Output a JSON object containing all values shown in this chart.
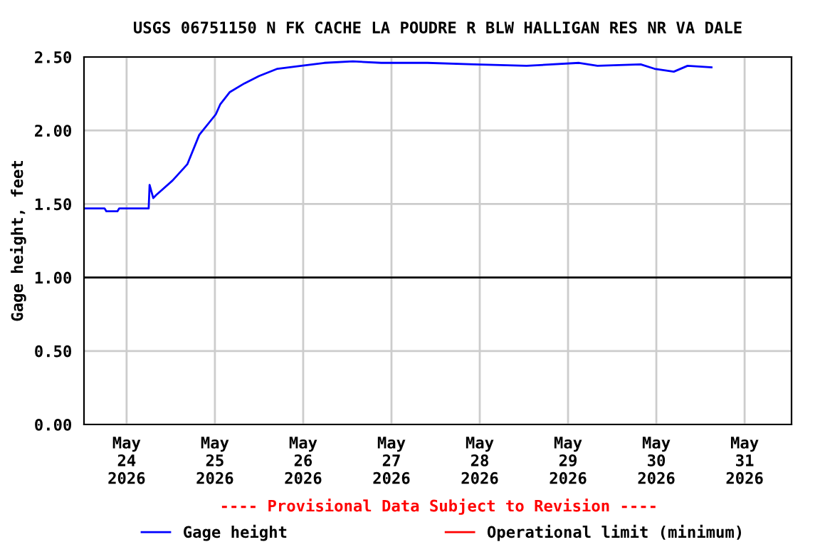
{
  "chart_data": {
    "type": "line",
    "title": "USGS 06751150 N FK CACHE LA POUDRE R BLW HALLIGAN RES NR VA DALE",
    "ylabel": "Gage height, feet",
    "annotations": [
      "---- Provisional Data Subject to Revision ----"
    ],
    "series": [
      {
        "name": "Gage height",
        "color": "#0000ff",
        "x": [
          "2026-05-23T12:45",
          "2026-05-23T18:00",
          "2026-05-23T18:30",
          "2026-05-23T21:30",
          "2026-05-23T22:00",
          "2026-05-24T06:00",
          "2026-05-24T06:15",
          "2026-05-24T07:15",
          "2026-05-24T08:00",
          "2026-05-24T12:30",
          "2026-05-24T16:30",
          "2026-05-24T19:45",
          "2026-05-25T00:15",
          "2026-05-25T01:30",
          "2026-05-25T04:00",
          "2026-05-25T08:00",
          "2026-05-25T12:00",
          "2026-05-25T17:00",
          "2026-05-25T23:30",
          "2026-05-26T05:45",
          "2026-05-26T13:30",
          "2026-05-26T21:15",
          "2026-05-27T09:45",
          "2026-05-27T22:30",
          "2026-05-28T12:45",
          "2026-05-29T03:00",
          "2026-05-29T08:00",
          "2026-05-29T19:45",
          "2026-05-29T23:30",
          "2026-05-30T04:45",
          "2026-05-30T08:30",
          "2026-05-30T15:00"
        ],
        "values": [
          1.47,
          1.47,
          1.45,
          1.45,
          1.47,
          1.47,
          1.63,
          1.54,
          1.56,
          1.66,
          1.77,
          1.97,
          2.11,
          2.18,
          2.26,
          2.32,
          2.37,
          2.42,
          2.44,
          2.46,
          2.47,
          2.46,
          2.46,
          2.45,
          2.44,
          2.46,
          2.44,
          2.45,
          2.42,
          2.4,
          2.44,
          2.43
        ]
      },
      {
        "name": "Operational limit (minimum)",
        "color": "#ff0000"
      }
    ],
    "ref_lines": [
      {
        "axis": "y",
        "value": 1.0,
        "color": "#000000"
      }
    ],
    "xlim": [
      "2026-05-23T12:25",
      "2026-05-31T12:45"
    ],
    "xticks": [
      {
        "value": "2026-05-24",
        "label": "May\n24\n2026"
      },
      {
        "value": "2026-05-25",
        "label": "May\n25\n2026"
      },
      {
        "value": "2026-05-26",
        "label": "May\n26\n2026"
      },
      {
        "value": "2026-05-27",
        "label": "May\n27\n2026"
      },
      {
        "value": "2026-05-28",
        "label": "May\n28\n2026"
      },
      {
        "value": "2026-05-29",
        "label": "May\n29\n2026"
      },
      {
        "value": "2026-05-30",
        "label": "May\n30\n2026"
      },
      {
        "value": "2026-05-31",
        "label": "May\n31\n2026"
      }
    ],
    "ylim": [
      0,
      2.5
    ],
    "yticks": [
      {
        "value": 0,
        "label": "0.00"
      },
      {
        "value": 0.5,
        "label": "0.50"
      },
      {
        "value": 1.0,
        "label": "1.00"
      },
      {
        "value": 1.5,
        "label": "1.50"
      },
      {
        "value": 2.0,
        "label": "2.00"
      },
      {
        "value": 2.5,
        "label": "2.50"
      }
    ],
    "grid": true,
    "legend": "bottom",
    "marker": "none",
    "line_style": "solid"
  }
}
